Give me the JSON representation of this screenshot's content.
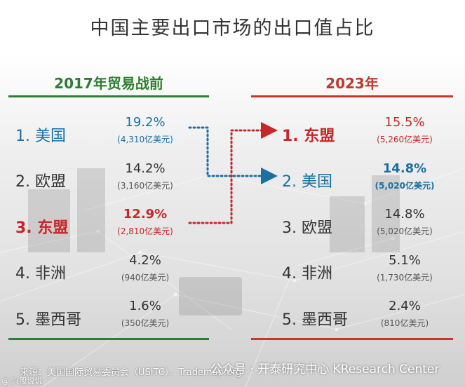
{
  "title": "中国主要出口市场的出口值占比",
  "chart_data": {
    "type": "table",
    "periods": [
      {
        "header": "2017年贸易战前",
        "rows": [
          {
            "rank_label": "1. 美国",
            "share": 19.2,
            "share_label": "19.2%",
            "value_label": "(4,310亿美元)",
            "value_usd_100m": 4310,
            "color": "#1b6fa1"
          },
          {
            "rank_label": "2. 欧盟",
            "share": 14.2,
            "share_label": "14.2%",
            "value_label": "(3,160亿美元)",
            "value_usd_100m": 3160,
            "color": "#333333"
          },
          {
            "rank_label": "3. 东盟",
            "share": 12.9,
            "share_label": "12.9%",
            "value_label": "(2,810亿美元)",
            "value_usd_100m": 2810,
            "color": "#c62828"
          },
          {
            "rank_label": "4. 非洲",
            "share": 4.2,
            "share_label": "4.2%",
            "value_label": "(940亿美元)",
            "value_usd_100m": 940,
            "color": "#333333"
          },
          {
            "rank_label": "5. 墨西哥",
            "share": 1.6,
            "share_label": "1.6%",
            "value_label": "(350亿美元)",
            "value_usd_100m": 350,
            "color": "#333333"
          }
        ]
      },
      {
        "header": "2023年",
        "rows": [
          {
            "rank_label": "1. 东盟",
            "share": 15.5,
            "share_label": "15.5%",
            "value_label": "(5,260亿美元)",
            "value_usd_100m": 5260,
            "color": "#c62828"
          },
          {
            "rank_label": "2. 美国",
            "share": 14.8,
            "share_label": "14.8%",
            "value_label": "(5,020亿美元)",
            "value_usd_100m": 5020,
            "color": "#1b6fa1"
          },
          {
            "rank_label": "3. 欧盟",
            "share": 14.8,
            "share_label": "14.8%",
            "value_label": "(5,020亿美元)",
            "value_usd_100m": 5020,
            "color": "#333333"
          },
          {
            "rank_label": "4. 非洲",
            "share": 5.1,
            "share_label": "5.1%",
            "value_label": "(1,730亿美元)",
            "value_usd_100m": 1730,
            "color": "#333333"
          },
          {
            "rank_label": "5. 墨西哥",
            "share": 2.4,
            "share_label": "2.4%",
            "value_label": "(810亿美元)",
            "value_usd_100m": 810,
            "color": "#333333"
          }
        ]
      }
    ],
    "header_colors": {
      "left": "#2e7d32",
      "right": "#c0392b"
    }
  },
  "footer": {
    "source": "来源：美国国际贸易委员会（USITC）、Trademap.org",
    "watermark": "公众号 · 开泰研究中心 KResearch Center",
    "corner": "@ 兴股说说"
  }
}
